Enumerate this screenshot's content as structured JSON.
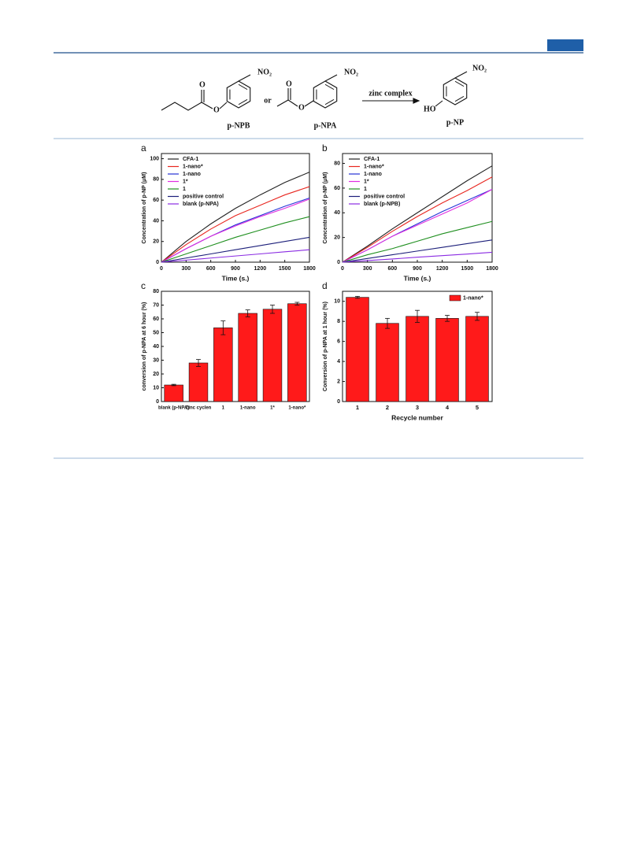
{
  "scheme": {
    "compounds": [
      "p-NPB",
      "p-NPA",
      "p-NP"
    ],
    "connector": "or",
    "reagent": "zinc complex",
    "nitro": "NO₂",
    "oxygen": "O",
    "hydroxyl": "HO"
  },
  "chart_data": [
    {
      "type": "line",
      "panel": "a",
      "xlabel": "Time (s.)",
      "ylabel": "Concentration of p-NP (μM)",
      "x": [
        0,
        300,
        600,
        900,
        1200,
        1500,
        1800
      ],
      "xlim": [
        0,
        1800
      ],
      "xticks": [
        0,
        300,
        600,
        900,
        1200,
        1500,
        1800
      ],
      "ylim": [
        0,
        105
      ],
      "yticks": [
        0,
        20,
        40,
        60,
        80,
        100
      ],
      "series": [
        {
          "name": "CFA-1",
          "color": "#222222",
          "values": [
            0,
            20,
            37,
            52,
            65,
            77,
            87
          ]
        },
        {
          "name": "1-nano*",
          "color": "#e8261f",
          "values": [
            0,
            17,
            32,
            45,
            55,
            65,
            73
          ]
        },
        {
          "name": "1-nano",
          "color": "#2433d6",
          "values": [
            0,
            13,
            25,
            36,
            45,
            54,
            62
          ]
        },
        {
          "name": "1*",
          "color": "#e02ee0",
          "values": [
            0,
            13,
            25,
            35,
            44,
            52,
            61
          ]
        },
        {
          "name": "1",
          "color": "#1f8f1f",
          "values": [
            0,
            8,
            16,
            24,
            31,
            38,
            44
          ]
        },
        {
          "name": "positive control",
          "color": "#1c1f7a",
          "values": [
            0,
            4,
            8,
            12,
            16,
            20,
            24
          ]
        },
        {
          "name": "blank (p-NPA)",
          "color": "#8a2be2",
          "values": [
            0,
            2,
            4,
            6,
            8,
            10,
            12
          ]
        }
      ]
    },
    {
      "type": "line",
      "panel": "b",
      "xlabel": "Time (s.)",
      "ylabel": "Concentration of p-NP (μM)",
      "x": [
        0,
        300,
        600,
        900,
        1200,
        1500,
        1800
      ],
      "xlim": [
        0,
        1800
      ],
      "xticks": [
        0,
        300,
        600,
        900,
        1200,
        1500,
        1800
      ],
      "ylim": [
        0,
        88
      ],
      "yticks": [
        0,
        20,
        40,
        60,
        80
      ],
      "series": [
        {
          "name": "CFA-1",
          "color": "#222222",
          "values": [
            0,
            13,
            27,
            40,
            53,
            66,
            78
          ]
        },
        {
          "name": "1-nano*",
          "color": "#e8261f",
          "values": [
            0,
            12,
            25,
            37,
            48,
            58,
            69
          ]
        },
        {
          "name": "1-nano",
          "color": "#2433d6",
          "values": [
            0,
            10,
            21,
            31,
            41,
            50,
            59
          ]
        },
        {
          "name": "1*",
          "color": "#e02ee0",
          "values": [
            0,
            10,
            21,
            30,
            39,
            48,
            59
          ]
        },
        {
          "name": "1",
          "color": "#1f8f1f",
          "values": [
            0,
            6,
            11,
            17,
            23,
            28,
            33
          ]
        },
        {
          "name": "positive control",
          "color": "#1c1f7a",
          "values": [
            0,
            3,
            6,
            9,
            12,
            15,
            18
          ]
        },
        {
          "name": "blank (p-NPB)",
          "color": "#8a2be2",
          "values": [
            0,
            1.3,
            2.6,
            4,
            5.3,
            6.6,
            8
          ]
        }
      ]
    },
    {
      "type": "bar",
      "panel": "c",
      "ylabel": "conversion of p-NPA at 6 hour (%)",
      "categories": [
        "blank (p-NPA)",
        "Zinc cyclen",
        "1",
        "1-nano",
        "1*",
        "1-nano*"
      ],
      "values": [
        12,
        28,
        53.5,
        64,
        67,
        71
      ],
      "errors": [
        0.5,
        2.5,
        5,
        2.5,
        3,
        1
      ],
      "color": "#ff1a1a",
      "ylim": [
        0,
        80
      ],
      "yticks": [
        0,
        10,
        20,
        30,
        40,
        50,
        60,
        70,
        80
      ]
    },
    {
      "type": "bar",
      "panel": "d",
      "xlabel": "Recycle number",
      "ylabel": "Conversion of p-NPA at 1 hour (%)",
      "legend": "1-nano*",
      "categories": [
        "1",
        "2",
        "3",
        "4",
        "5"
      ],
      "values": [
        10.4,
        7.8,
        8.5,
        8.3,
        8.5
      ],
      "errors": [
        0.1,
        0.5,
        0.6,
        0.3,
        0.4
      ],
      "color": "#ff1a1a",
      "ylim": [
        0,
        11
      ],
      "yticks": [
        0,
        2,
        4,
        6,
        8,
        10
      ]
    }
  ]
}
